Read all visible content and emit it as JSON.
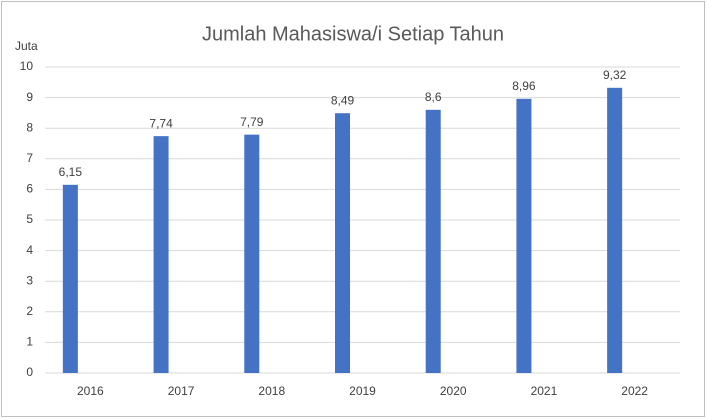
{
  "chart_data": {
    "type": "bar",
    "title": "Jumlah Mahasiswa/i Setiap Tahun",
    "y_label": "Juta",
    "categories": [
      "2016",
      "2017",
      "2018",
      "2019",
      "2020",
      "2021",
      "2022"
    ],
    "values": [
      6.15,
      7.74,
      7.79,
      8.49,
      8.6,
      8.96,
      9.32
    ],
    "value_labels": [
      "6,15",
      "7,74",
      "7,79",
      "8,49",
      "8,6",
      "8,96",
      "9,32"
    ],
    "color": "#4472c4",
    "ylim": [
      0,
      10
    ],
    "yticks": [
      0,
      1,
      2,
      3,
      4,
      5,
      6,
      7,
      8,
      9,
      10
    ],
    "grid": true
  }
}
